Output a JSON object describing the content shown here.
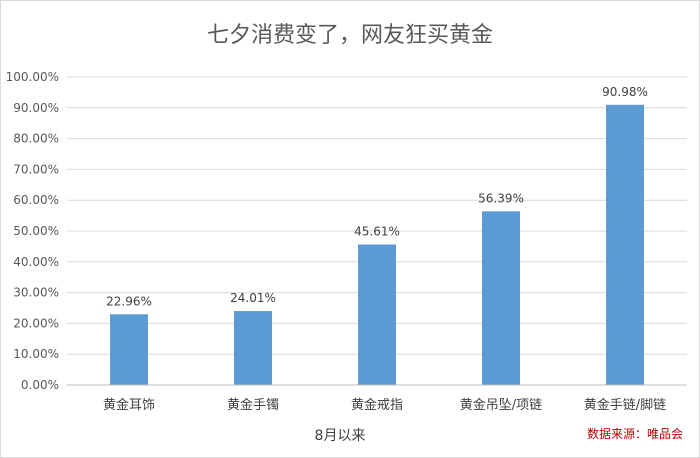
{
  "chart_data": {
    "type": "bar",
    "title": "七夕消费变了，网友狂买黄金",
    "xlabel": "8月以来",
    "ylabel": "",
    "categories": [
      "黄金耳饰",
      "黄金手镯",
      "黄金戒指",
      "黄金吊坠/项链",
      "黄金手链/脚链"
    ],
    "values": [
      22.96,
      24.01,
      45.61,
      56.39,
      90.98
    ],
    "data_labels": [
      "22.96%",
      "24.01%",
      "45.61%",
      "56.39%",
      "90.98%"
    ],
    "ylim": [
      0,
      100
    ],
    "yticks": [
      "0.00%",
      "10.00%",
      "20.00%",
      "30.00%",
      "40.00%",
      "50.00%",
      "60.00%",
      "70.00%",
      "80.00%",
      "90.00%",
      "100.00%"
    ],
    "grid": true,
    "bar_color": "#5b9bd5",
    "source": "数据来源：唯品会"
  }
}
